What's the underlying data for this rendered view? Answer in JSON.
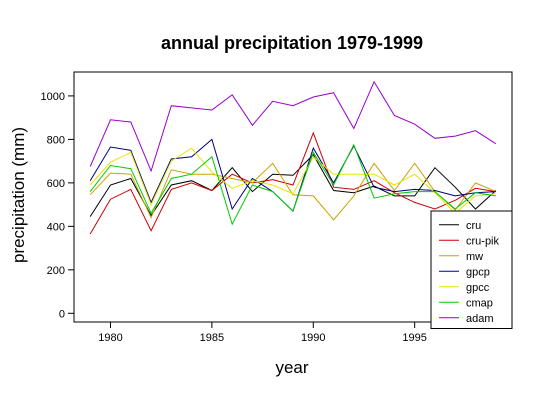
{
  "chart_data": {
    "type": "line",
    "title": "annual precipitation 1979-1999",
    "xlabel": "year",
    "ylabel": "precipitation (mm)",
    "xlim": [
      1978.2,
      1999.8
    ],
    "ylim": [
      -40,
      1110
    ],
    "x_ticks": [
      1980,
      1985,
      1990,
      1995
    ],
    "y_ticks": [
      0,
      200,
      400,
      600,
      800,
      1000
    ],
    "grid": false,
    "legend_position": "bottom-right",
    "x": [
      1979,
      1980,
      1981,
      1982,
      1983,
      1984,
      1985,
      1986,
      1987,
      1988,
      1989,
      1990,
      1991,
      1992,
      1993,
      1994,
      1995,
      1996,
      1997,
      1998,
      1999
    ],
    "series": [
      {
        "name": "cru",
        "color": "#000000",
        "values": [
          445,
          590,
          620,
          450,
          590,
          610,
          565,
          670,
          560,
          640,
          635,
          730,
          565,
          555,
          585,
          540,
          540,
          670,
          580,
          480,
          565
        ]
      },
      {
        "name": "cru-pik",
        "color": "#cc0000",
        "values": [
          365,
          525,
          570,
          380,
          570,
          600,
          565,
          640,
          600,
          615,
          590,
          830,
          580,
          570,
          610,
          555,
          510,
          480,
          520,
          575,
          560
        ]
      },
      {
        "name": "mw",
        "color": "#cca300",
        "values": [
          545,
          645,
          640,
          440,
          660,
          640,
          640,
          620,
          600,
          690,
          545,
          540,
          430,
          540,
          690,
          565,
          690,
          560,
          475,
          600,
          560
        ]
      },
      {
        "name": "gpcp",
        "color": "#000080",
        "values": [
          610,
          765,
          750,
          510,
          710,
          720,
          800,
          480,
          620,
          560,
          470,
          760,
          600,
          770,
          580,
          560,
          570,
          565,
          540,
          555,
          560
        ]
      },
      {
        "name": "gpcc",
        "color": "#e6e600",
        "values": [
          590,
          695,
          740,
          500,
          700,
          760,
          650,
          575,
          610,
          590,
          550,
          720,
          640,
          640,
          640,
          590,
          640,
          555,
          460,
          540,
          550
        ]
      },
      {
        "name": "cmap",
        "color": "#00cc00",
        "values": [
          560,
          680,
          665,
          460,
          620,
          640,
          720,
          410,
          590,
          560,
          470,
          740,
          590,
          775,
          530,
          550,
          560,
          560,
          480,
          555,
          540
        ]
      },
      {
        "name": "adam",
        "color": "#9900cc",
        "values": [
          675,
          890,
          880,
          655,
          955,
          945,
          935,
          1005,
          865,
          975,
          955,
          995,
          1015,
          850,
          1065,
          910,
          870,
          805,
          815,
          840,
          780
        ]
      }
    ]
  }
}
